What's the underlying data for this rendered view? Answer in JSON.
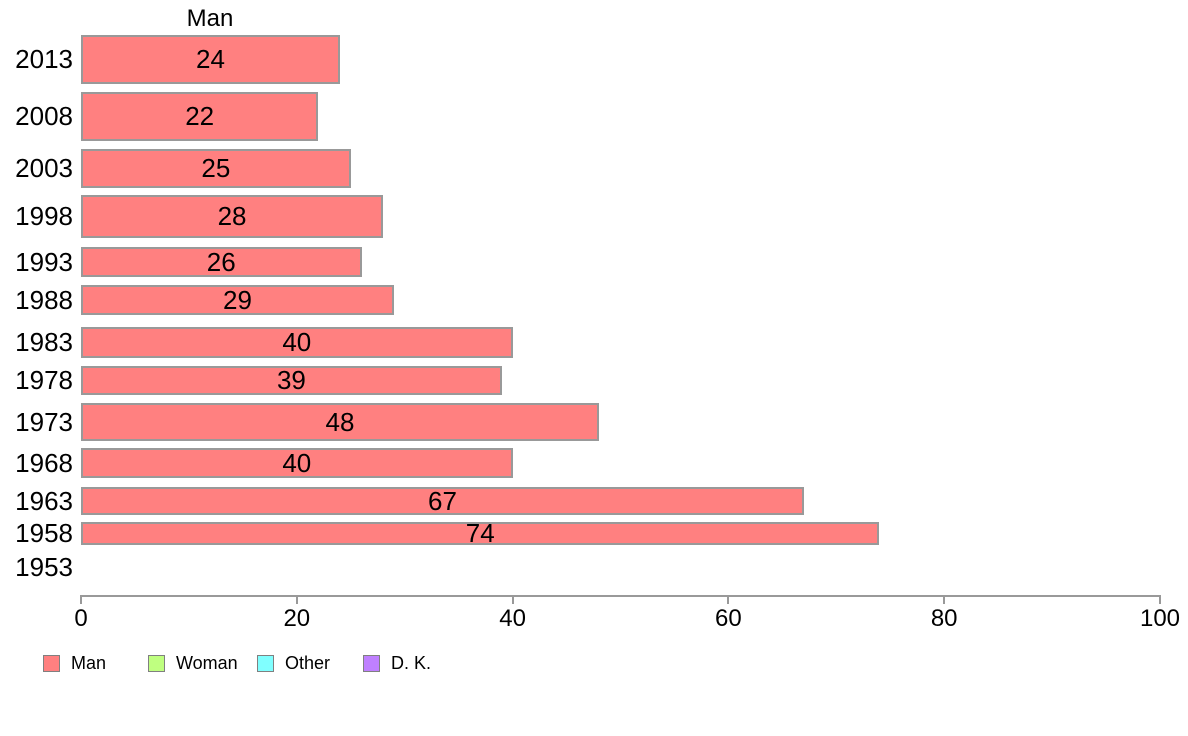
{
  "chart_data": {
    "type": "bar",
    "orientation": "horizontal",
    "title": "Man",
    "categories": [
      "2013",
      "2008",
      "2003",
      "1998",
      "1993",
      "1988",
      "1983",
      "1978",
      "1973",
      "1968",
      "1963",
      "1958",
      "1953"
    ],
    "values": [
      24,
      22,
      25,
      28,
      26,
      29,
      40,
      39,
      48,
      40,
      67,
      74,
      null
    ],
    "bar_labels_shown": true,
    "xlabel": "",
    "ylabel": "",
    "xlim": [
      0,
      100
    ],
    "x_ticks": [
      0,
      20,
      40,
      60,
      80,
      100
    ],
    "grid": false,
    "bar_color": "#FF8080",
    "bar_border_color": "#999999",
    "axis_color": "#999999",
    "legend_position": "bottom-left",
    "legend": [
      "Man",
      "Woman",
      "Other",
      "D. K."
    ],
    "legend_colors": [
      "#FF8080",
      "#BFFF80",
      "#80FFFF",
      "#BF80FF"
    ]
  }
}
